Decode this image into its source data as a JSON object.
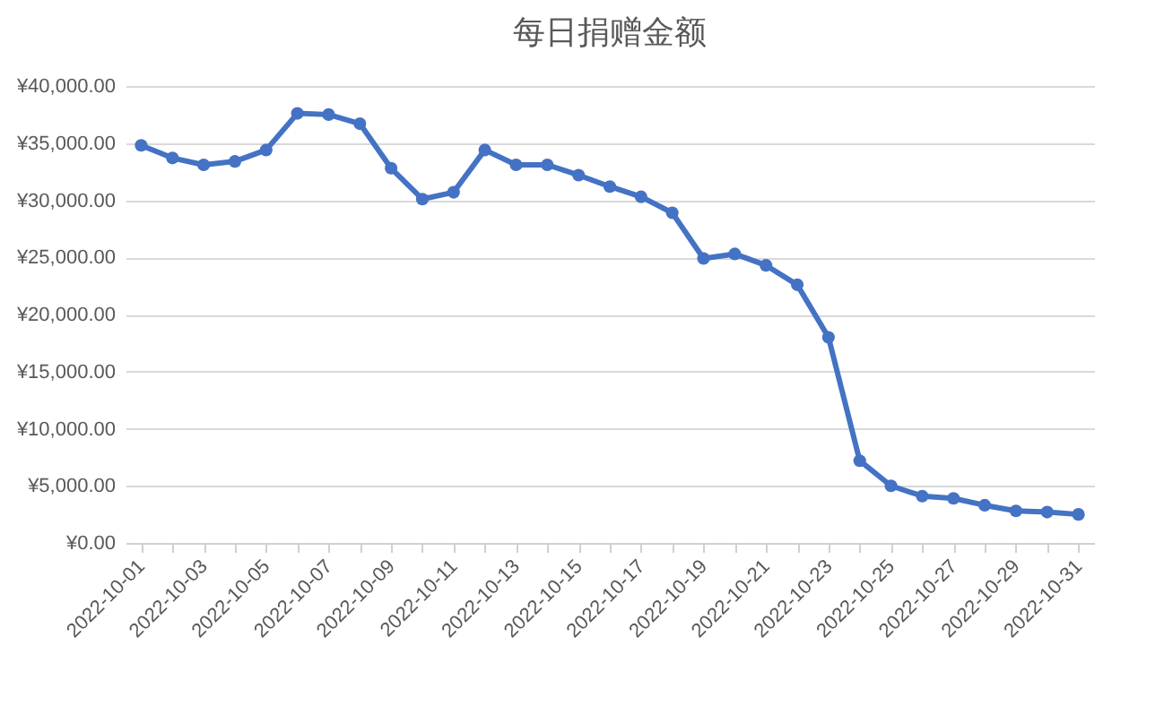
{
  "chart_data": {
    "type": "line",
    "title": "每日捐赠金额",
    "categories": [
      "2022-10-01",
      null,
      "2022-10-03",
      null,
      "2022-10-05",
      null,
      "2022-10-07",
      null,
      "2022-10-09",
      null,
      "2022-10-11",
      null,
      "2022-10-13",
      null,
      "2022-10-15",
      null,
      "2022-10-17",
      null,
      "2022-10-19",
      null,
      "2022-10-21",
      null,
      "2022-10-23",
      null,
      "2022-10-25",
      null,
      "2022-10-27",
      null,
      "2022-10-29",
      null,
      "2022-10-31"
    ],
    "series": [
      {
        "color": "#4472c4",
        "values": [
          34800,
          33700,
          33100,
          33400,
          34400,
          37600,
          37500,
          36700,
          32800,
          30100,
          30700,
          34400,
          33100,
          33100,
          32200,
          31200,
          30300,
          28900,
          24900,
          25300,
          24300,
          22600,
          18000,
          7200,
          5000,
          4100,
          3900,
          3300,
          2800,
          2700,
          2500
        ]
      }
    ],
    "ylim": [
      0,
      40000
    ],
    "yticks": [
      {
        "value": 0,
        "label": "¥0.00"
      },
      {
        "value": 5000,
        "label": "¥5,000.00"
      },
      {
        "value": 10000,
        "label": "¥10,000.00"
      },
      {
        "value": 15000,
        "label": "¥15,000.00"
      },
      {
        "value": 20000,
        "label": "¥20,000.00"
      },
      {
        "value": 25000,
        "label": "¥25,000.00"
      },
      {
        "value": 30000,
        "label": "¥30,000.00"
      },
      {
        "value": 35000,
        "label": "¥35,000.00"
      },
      {
        "value": 40000,
        "label": "¥40,000.00"
      }
    ],
    "grid": "y",
    "marker": "circle",
    "line_style": "solid"
  }
}
